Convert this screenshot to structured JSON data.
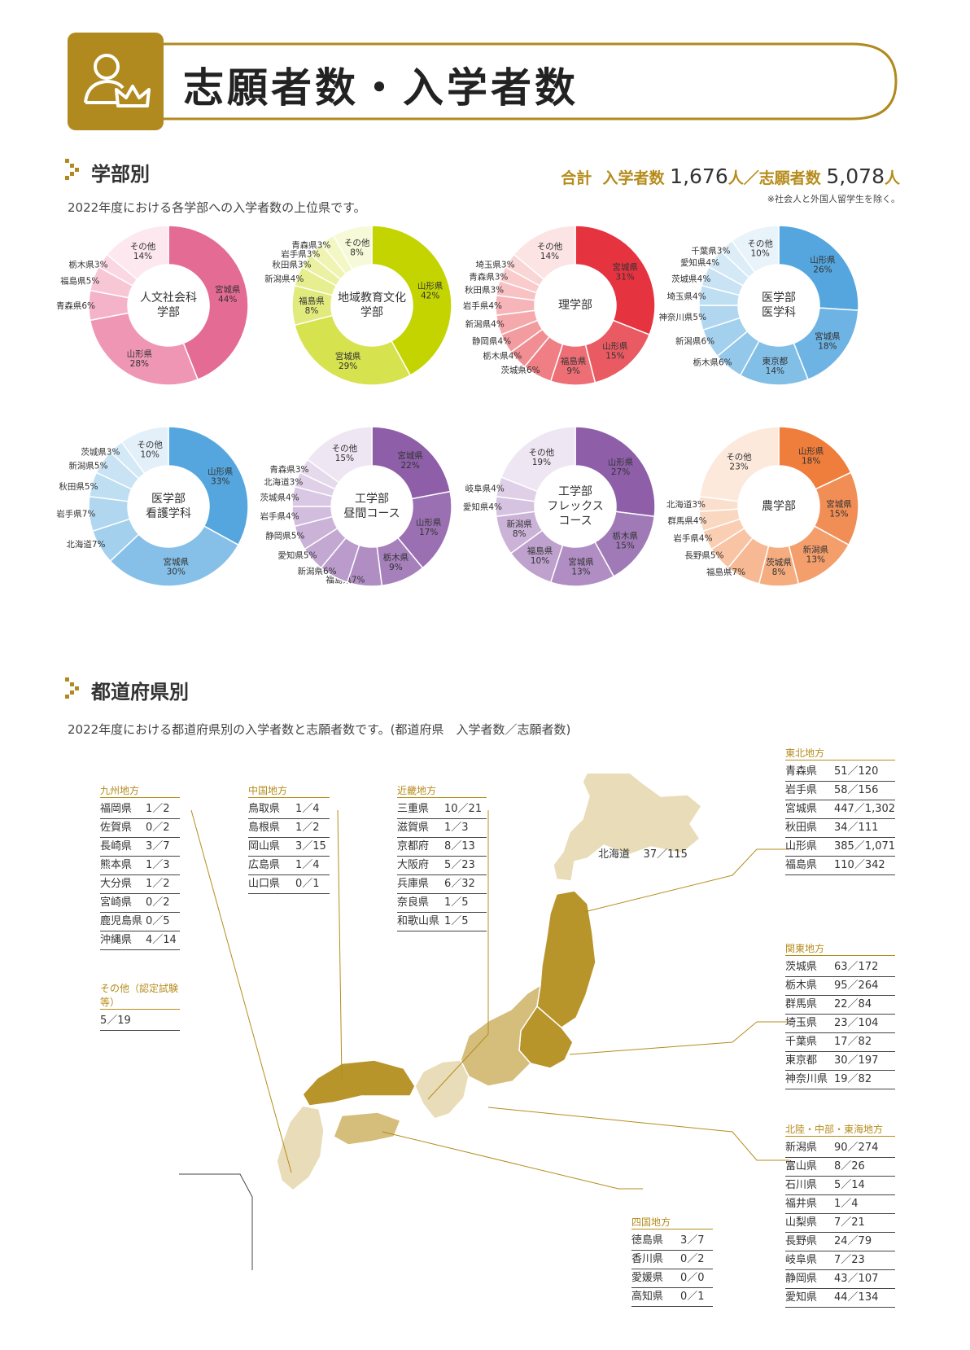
{
  "header": {
    "title": "志願者数・入学者数",
    "icon": "person-crown-icon"
  },
  "faculty_section": {
    "title": "学部別",
    "description": "2022年度における各学部への入学者数の上位県です。",
    "totals": {
      "label": "合計",
      "enrolled_label": "入学者数",
      "enrolled": "1,676",
      "unit1": "人／",
      "applicants_label": "志願者数",
      "applicants": "5,078",
      "unit2": "人"
    },
    "note": "※社会人と外国人留学生を除く。"
  },
  "chart_data": [
    {
      "type": "pie",
      "title": "人文社会科学部",
      "center": [
        "人文社会科",
        "学部"
      ],
      "slices": [
        {
          "label": "宮城県",
          "value": 44
        },
        {
          "label": "山形県",
          "value": 28
        },
        {
          "label": "青森県",
          "value": 6
        },
        {
          "label": "福島県",
          "value": 5
        },
        {
          "label": "栃木県",
          "value": 3
        },
        {
          "label": "その他",
          "value": 14
        }
      ],
      "colors": [
        "#e46b93",
        "#ef96b4",
        "#f4b3c8",
        "#f8c7d6",
        "#fad7e2",
        "#fce8ee"
      ]
    },
    {
      "type": "pie",
      "title": "地域教育文化学部",
      "center": [
        "地域教育文化",
        "学部"
      ],
      "slices": [
        {
          "label": "山形県",
          "value": 42
        },
        {
          "label": "宮城県",
          "value": 29
        },
        {
          "label": "福島県",
          "value": 8
        },
        {
          "label": "新潟県",
          "value": 4
        },
        {
          "label": "秋田県",
          "value": 3
        },
        {
          "label": "岩手県",
          "value": 3
        },
        {
          "label": "青森県",
          "value": 3
        },
        {
          "label": "その他",
          "value": 8
        }
      ],
      "colors": [
        "#c3d400",
        "#d6e24e",
        "#e1ea7c",
        "#e6ee8f",
        "#ebf1a2",
        "#eff4b3",
        "#f3f7c4",
        "#f7fad9"
      ]
    },
    {
      "type": "pie",
      "title": "理学部",
      "center": [
        "理学部"
      ],
      "slices": [
        {
          "label": "宮城県",
          "value": 31
        },
        {
          "label": "山形県",
          "value": 15
        },
        {
          "label": "福島県",
          "value": 9
        },
        {
          "label": "茨城県",
          "value": 6
        },
        {
          "label": "栃木県",
          "value": 4
        },
        {
          "label": "静岡県",
          "value": 4
        },
        {
          "label": "新潟県",
          "value": 4
        },
        {
          "label": "岩手県",
          "value": 4
        },
        {
          "label": "秋田県",
          "value": 3
        },
        {
          "label": "青森県",
          "value": 3
        },
        {
          "label": "埼玉県",
          "value": 3
        },
        {
          "label": "その他",
          "value": 14
        }
      ],
      "colors": [
        "#e63340",
        "#ea5a63",
        "#ed6e75",
        "#ef7f85",
        "#f18e93",
        "#f39ca0",
        "#f5a9ad",
        "#f6b5b8",
        "#f8c1c3",
        "#f9cbcd",
        "#fad5d6",
        "#fce4e4"
      ]
    },
    {
      "type": "pie",
      "title": "医学部医学科",
      "center": [
        "医学部",
        "医学科"
      ],
      "slices": [
        {
          "label": "山形県",
          "value": 26
        },
        {
          "label": "宮城県",
          "value": 18
        },
        {
          "label": "東京都",
          "value": 14
        },
        {
          "label": "栃木県",
          "value": 6
        },
        {
          "label": "新潟県",
          "value": 6
        },
        {
          "label": "神奈川県",
          "value": 5
        },
        {
          "label": "埼玉県",
          "value": 4
        },
        {
          "label": "茨城県",
          "value": 4
        },
        {
          "label": "愛知県",
          "value": 4
        },
        {
          "label": "千葉県",
          "value": 3
        },
        {
          "label": "その他",
          "value": 10
        }
      ],
      "colors": [
        "#55a6de",
        "#6db3e3",
        "#82bfe7",
        "#94c8ea",
        "#a3d0ed",
        "#b1d7f0",
        "#bedef2",
        "#c9e3f4",
        "#d3e9f6",
        "#dcedf8",
        "#e8f3fa"
      ]
    },
    {
      "type": "pie",
      "title": "医学部看護学科",
      "center": [
        "医学部",
        "看護学科"
      ],
      "slices": [
        {
          "label": "山形県",
          "value": 33
        },
        {
          "label": "宮城県",
          "value": 30
        },
        {
          "label": "北海道",
          "value": 7
        },
        {
          "label": "岩手県",
          "value": 7
        },
        {
          "label": "秋田県",
          "value": 5
        },
        {
          "label": "新潟県",
          "value": 5
        },
        {
          "label": "茨城県",
          "value": 3
        },
        {
          "label": "その他",
          "value": 10
        }
      ],
      "colors": [
        "#55a6de",
        "#86c0e8",
        "#a3d0ed",
        "#b1d7f0",
        "#bedef2",
        "#c9e3f4",
        "#d3e9f6",
        "#e3f0f9"
      ]
    },
    {
      "type": "pie",
      "title": "工学部昼間コース",
      "center": [
        "工学部",
        "昼間コース"
      ],
      "slices": [
        {
          "label": "宮城県",
          "value": 22
        },
        {
          "label": "山形県",
          "value": 17
        },
        {
          "label": "栃木県",
          "value": 9
        },
        {
          "label": "福島県",
          "value": 7
        },
        {
          "label": "新潟県",
          "value": 6
        },
        {
          "label": "愛知県",
          "value": 5
        },
        {
          "label": "静岡県",
          "value": 5
        },
        {
          "label": "岩手県",
          "value": 4
        },
        {
          "label": "茨城県",
          "value": 4
        },
        {
          "label": "北海道",
          "value": 3
        },
        {
          "label": "青森県",
          "value": 3
        },
        {
          "label": "その他",
          "value": 15
        }
      ],
      "colors": [
        "#8e5fa8",
        "#9a70b2",
        "#a680bb",
        "#b08ec3",
        "#ba9bcb",
        "#c3a8d2",
        "#cbb3d8",
        "#d2bdde",
        "#d9c7e3",
        "#dfd0e8",
        "#e5d9ec",
        "#eee6f3"
      ]
    },
    {
      "type": "pie",
      "title": "工学部フレックスコース",
      "center": [
        "工学部",
        "フレックス",
        "コース"
      ],
      "slices": [
        {
          "label": "山形県",
          "value": 27
        },
        {
          "label": "栃木県",
          "value": 15
        },
        {
          "label": "宮城県",
          "value": 13
        },
        {
          "label": "福島県",
          "value": 10
        },
        {
          "label": "新潟県",
          "value": 8
        },
        {
          "label": "愛知県",
          "value": 4
        },
        {
          "label": "岐阜県",
          "value": 4
        },
        {
          "label": "その他",
          "value": 19
        }
      ],
      "colors": [
        "#8e5fa8",
        "#a07ab7",
        "#b08ec3",
        "#bea1cd",
        "#cbb3d8",
        "#d6c3e1",
        "#dfd0e8",
        "#eee6f3"
      ]
    },
    {
      "type": "pie",
      "title": "農学部",
      "center": [
        "農学部"
      ],
      "slices": [
        {
          "label": "山形県",
          "value": 18
        },
        {
          "label": "宮城県",
          "value": 15
        },
        {
          "label": "新潟県",
          "value": 13
        },
        {
          "label": "茨城県",
          "value": 8
        },
        {
          "label": "福島県",
          "value": 7
        },
        {
          "label": "長野県",
          "value": 5
        },
        {
          "label": "岩手県",
          "value": 4
        },
        {
          "label": "群馬県",
          "value": 4
        },
        {
          "label": "北海道",
          "value": 3
        },
        {
          "label": "その他",
          "value": 23
        }
      ],
      "colors": [
        "#ef7d3c",
        "#f18e55",
        "#f39e6b",
        "#f5ad80",
        "#f6b993",
        "#f8c4a4",
        "#f9ceb3",
        "#fad7c1",
        "#fbdfcd",
        "#fde9dc"
      ]
    }
  ],
  "prefecture_section": {
    "title": "都道府県別",
    "description": "2022年度における都道府県別の入学者数と志願者数です。(都道府県　入学者数／志願者数)"
  },
  "regions": {
    "kyushu": {
      "title": "九州地方",
      "rows": [
        [
          "福岡県",
          "1／2"
        ],
        [
          "佐賀県",
          "0／2"
        ],
        [
          "長崎県",
          "3／7"
        ],
        [
          "熊本県",
          "1／3"
        ],
        [
          "大分県",
          "1／2"
        ],
        [
          "宮崎県",
          "0／2"
        ],
        [
          "鹿児島県",
          "0／5"
        ],
        [
          "沖縄県",
          "4／14"
        ]
      ]
    },
    "other": {
      "title": "その他（認定試験等）",
      "rows": [
        [
          "",
          "5／19"
        ]
      ]
    },
    "chugoku": {
      "title": "中国地方",
      "rows": [
        [
          "鳥取県",
          "1／4"
        ],
        [
          "島根県",
          "1／2"
        ],
        [
          "岡山県",
          "3／15"
        ],
        [
          "広島県",
          "1／4"
        ],
        [
          "山口県",
          "0／1"
        ]
      ]
    },
    "kinki": {
      "title": "近畿地方",
      "rows": [
        [
          "三重県",
          "10／21"
        ],
        [
          "滋賀県",
          "1／3"
        ],
        [
          "京都府",
          "8／13"
        ],
        [
          "大阪府",
          "5／23"
        ],
        [
          "兵庫県",
          "6／32"
        ],
        [
          "奈良県",
          "1／5"
        ],
        [
          "和歌山県",
          "1／5"
        ]
      ]
    },
    "hokkaido": {
      "label": "北海道",
      "value": "37／115"
    },
    "tohoku": {
      "title": "東北地方",
      "rows": [
        [
          "青森県",
          "51／120"
        ],
        [
          "岩手県",
          "58／156"
        ],
        [
          "宮城県",
          "447／1,302"
        ],
        [
          "秋田県",
          "34／111"
        ],
        [
          "山形県",
          "385／1,071"
        ],
        [
          "福島県",
          "110／342"
        ]
      ]
    },
    "kanto": {
      "title": "関東地方",
      "rows": [
        [
          "茨城県",
          "63／172"
        ],
        [
          "栃木県",
          "95／264"
        ],
        [
          "群馬県",
          "22／84"
        ],
        [
          "埼玉県",
          "23／104"
        ],
        [
          "千葉県",
          "17／82"
        ],
        [
          "東京都",
          "30／197"
        ],
        [
          "神奈川県",
          "19／82"
        ]
      ]
    },
    "chubu": {
      "title": "北陸・中部・東海地方",
      "rows": [
        [
          "新潟県",
          "90／274"
        ],
        [
          "富山県",
          "8／26"
        ],
        [
          "石川県",
          "5／14"
        ],
        [
          "福井県",
          "1／4"
        ],
        [
          "山梨県",
          "7／21"
        ],
        [
          "長野県",
          "24／79"
        ],
        [
          "岐阜県",
          "7／23"
        ],
        [
          "静岡県",
          "43／107"
        ],
        [
          "愛知県",
          "44／134"
        ]
      ]
    },
    "shikoku": {
      "title": "四国地方",
      "rows": [
        [
          "徳島県",
          "3／7"
        ],
        [
          "香川県",
          "0／2"
        ],
        [
          "愛媛県",
          "0／0"
        ],
        [
          "高知県",
          "0／1"
        ]
      ]
    }
  },
  "colors": {
    "gold": "#b08a1e",
    "gold_text": "#b58c1c",
    "map_dark": "#b8952b",
    "map_mid": "#d5bd7c",
    "map_light": "#e9dcb8"
  }
}
